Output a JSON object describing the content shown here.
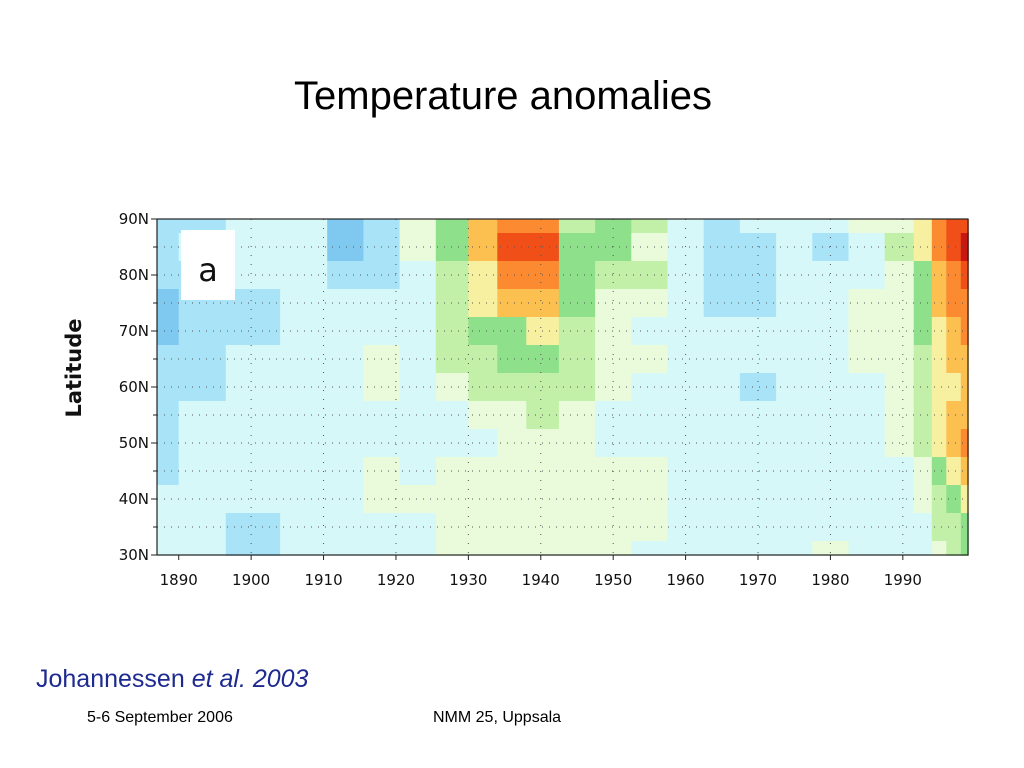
{
  "slide": {
    "title": "Temperature anomalies",
    "citation_author": "Johannessen",
    "citation_etal": "et al. 2003",
    "footer_date": "5-6 September 2006",
    "footer_venue": "NMM 25, Uppsala"
  },
  "chart_data": {
    "type": "heatmap",
    "panel_label": "a",
    "ylabel": "Latitude",
    "x_ticks": [
      "1890",
      "1900",
      "1910",
      "1920",
      "1930",
      "1940",
      "1950",
      "1960",
      "1970",
      "1980",
      "1990"
    ],
    "y_ticks": [
      "90N",
      "80N",
      "70N",
      "60N",
      "50N",
      "40N",
      "30N"
    ],
    "xlim": [
      1887,
      1999
    ],
    "ylim": [
      30,
      90
    ],
    "grid": "dotted",
    "color_scale": [
      "#2a88cc",
      "#4ea7e2",
      "#7fc8f0",
      "#a9e3f8",
      "#d6f8f8",
      "#eafbdc",
      "#c2f0a8",
      "#8ee08a",
      "#f7f0a0",
      "#fcc050",
      "#fb8a30",
      "#f05018",
      "#c81810",
      "#9a0c10"
    ],
    "x_years": [
      1887,
      1893,
      1900,
      1908,
      1913,
      1918,
      1923,
      1928,
      1932,
      1936,
      1940,
      1945,
      1950,
      1955,
      1960,
      1965,
      1970,
      1975,
      1980,
      1985,
      1990,
      1993,
      1995,
      1997,
      1999
    ],
    "y_lats": [
      90,
      85,
      80,
      75,
      70,
      65,
      60,
      55,
      50,
      45,
      40,
      35,
      30
    ],
    "values": [
      [
        -2,
        -2,
        -1,
        -1,
        -3,
        -2,
        0,
        2,
        4,
        5,
        5,
        1,
        2,
        1,
        -1,
        -2,
        -1,
        -1,
        -1,
        0,
        0,
        3,
        5,
        6,
        6
      ],
      [
        -2,
        -1,
        -1,
        -1,
        -3,
        -2,
        0,
        2,
        4,
        6,
        6,
        2,
        2,
        0,
        -1,
        -2,
        -2,
        -1,
        -2,
        -1,
        1,
        3,
        5,
        6,
        7
      ],
      [
        -2,
        -2,
        -1,
        -1,
        -2,
        -2,
        -1,
        1,
        3,
        5,
        5,
        2,
        1,
        1,
        -1,
        -2,
        -2,
        -1,
        -1,
        -1,
        0,
        2,
        4,
        5,
        6
      ],
      [
        -3,
        -2,
        -2,
        -1,
        -1,
        -1,
        -1,
        1,
        3,
        4,
        4,
        2,
        0,
        0,
        -1,
        -2,
        -2,
        -1,
        -1,
        0,
        0,
        2,
        4,
        5,
        5
      ],
      [
        -3,
        -2,
        -2,
        -1,
        -1,
        -1,
        -1,
        1,
        2,
        2,
        3,
        1,
        0,
        -1,
        -1,
        -1,
        -1,
        -1,
        -1,
        0,
        0,
        2,
        3,
        4,
        5
      ],
      [
        -2,
        -2,
        -1,
        -1,
        -1,
        0,
        -1,
        1,
        1,
        2,
        2,
        1,
        0,
        0,
        -1,
        -1,
        -1,
        -1,
        -1,
        0,
        0,
        1,
        3,
        4,
        4
      ],
      [
        -2,
        -2,
        -1,
        -1,
        -1,
        0,
        -1,
        0,
        1,
        1,
        1,
        1,
        0,
        -1,
        -1,
        -1,
        -2,
        -1,
        -1,
        -1,
        0,
        1,
        3,
        3,
        4
      ],
      [
        -2,
        -1,
        -1,
        -1,
        -1,
        -1,
        -1,
        -1,
        0,
        0,
        1,
        0,
        -1,
        -1,
        -1,
        -1,
        -1,
        -1,
        -1,
        -1,
        0,
        1,
        3,
        4,
        4
      ],
      [
        -2,
        -1,
        -1,
        -1,
        -1,
        -1,
        -1,
        -1,
        -1,
        0,
        0,
        0,
        -1,
        -1,
        -1,
        -1,
        -1,
        -1,
        -1,
        -1,
        0,
        1,
        3,
        4,
        5
      ],
      [
        -2,
        -1,
        -1,
        -1,
        -1,
        0,
        -1,
        0,
        0,
        0,
        0,
        0,
        0,
        0,
        -1,
        -1,
        -1,
        -1,
        -1,
        -1,
        -1,
        0,
        2,
        3,
        4
      ],
      [
        -1,
        -1,
        -1,
        -1,
        -1,
        0,
        0,
        0,
        0,
        0,
        0,
        0,
        0,
        0,
        -1,
        -1,
        -1,
        -1,
        -1,
        -1,
        -1,
        0,
        1,
        2,
        3
      ],
      [
        -1,
        -1,
        -2,
        -1,
        -1,
        -1,
        -1,
        0,
        0,
        0,
        0,
        0,
        0,
        0,
        -1,
        -1,
        -1,
        -1,
        -1,
        -1,
        -1,
        -1,
        1,
        1,
        2
      ],
      [
        -1,
        -1,
        -2,
        -1,
        -1,
        -1,
        -1,
        0,
        0,
        0,
        0,
        0,
        0,
        -1,
        -1,
        -1,
        -1,
        -1,
        0,
        -1,
        -1,
        -1,
        0,
        1,
        2
      ]
    ]
  }
}
